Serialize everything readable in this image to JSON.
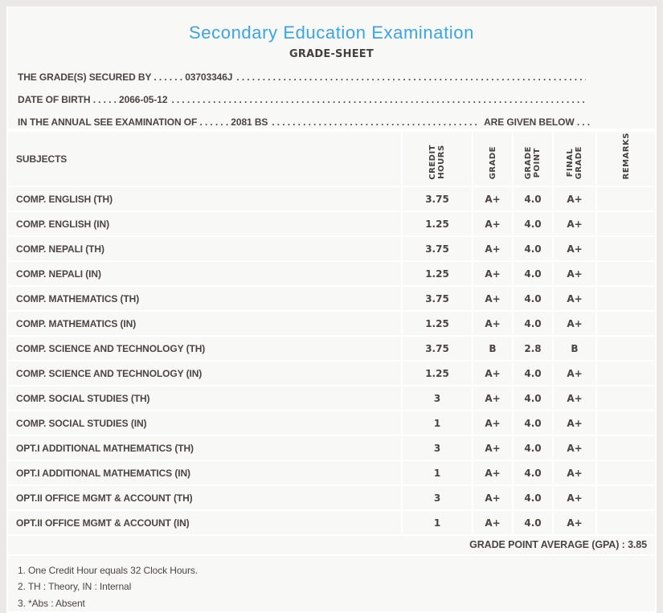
{
  "header": {
    "title": "Secondary Education Examination",
    "subtitle": "GRADE-SHEET"
  },
  "student_info": {
    "lines": [
      {
        "text": "THE GRADE(S) SECURED BY . . . . . . 03703346J",
        "suffix": ""
      },
      {
        "text": "DATE OF BIRTH . . . . . 2066-05-12",
        "suffix": ""
      },
      {
        "text": "IN THE ANNUAL SEE EXAMINATION OF . . . . . . 2081 BS",
        "suffix": "ARE GIVEN BELOW . . ."
      }
    ],
    "dot_filler": ". . . . . . . . . . . . . . . . . . . . . . . . . . . . . . . . . . . . . . . . . . . . . . . . . . . . . . . . . . . . . . . . . . . . . . . . . . . . . . . . . . . . . . . . . . . . . . . . . . . . . . . . . . . . . . . . . . . ."
  },
  "table": {
    "headers": [
      "SUBJECTS",
      "CREDIT\nHOURS",
      "GRADE",
      "GRADE\nPOINT",
      "FINAL\nGRADE",
      "REMARKS"
    ],
    "rows": [
      [
        "COMP. ENGLISH (TH)",
        "3.75",
        "A+",
        "4.0",
        "A+",
        ""
      ],
      [
        "COMP. ENGLISH (IN)",
        "1.25",
        "A+",
        "4.0",
        "A+",
        ""
      ],
      [
        "COMP. NEPALI (TH)",
        "3.75",
        "A+",
        "4.0",
        "A+",
        ""
      ],
      [
        "COMP. NEPALI (IN)",
        "1.25",
        "A+",
        "4.0",
        "A+",
        ""
      ],
      [
        "COMP. MATHEMATICS (TH)",
        "3.75",
        "A+",
        "4.0",
        "A+",
        ""
      ],
      [
        "COMP. MATHEMATICS (IN)",
        "1.25",
        "A+",
        "4.0",
        "A+",
        ""
      ],
      [
        "COMP. SCIENCE AND TECHNOLOGY (TH)",
        "3.75",
        "B",
        "2.8",
        "B",
        ""
      ],
      [
        "COMP. SCIENCE AND TECHNOLOGY (IN)",
        "1.25",
        "A+",
        "4.0",
        "A+",
        ""
      ],
      [
        "COMP. SOCIAL STUDIES (TH)",
        "3",
        "A+",
        "4.0",
        "A+",
        ""
      ],
      [
        "COMP. SOCIAL STUDIES (IN)",
        "1",
        "A+",
        "4.0",
        "A+",
        ""
      ],
      [
        "OPT.I ADDITIONAL MATHEMATICS (TH)",
        "3",
        "A+",
        "4.0",
        "A+",
        ""
      ],
      [
        "OPT.I ADDITIONAL MATHEMATICS (IN)",
        "1",
        "A+",
        "4.0",
        "A+",
        ""
      ],
      [
        "OPT.II OFFICE MGMT & ACCOUNT (TH)",
        "3",
        "A+",
        "4.0",
        "A+",
        ""
      ],
      [
        "OPT.II OFFICE MGMT & ACCOUNT (IN)",
        "1",
        "A+",
        "4.0",
        "A+",
        ""
      ]
    ]
  },
  "summary": {
    "gpa_text": "GRADE POINT AVERAGE (GPA) : 3.85"
  },
  "notes": [
    "1. One Credit Hour equals 32 Clock Hours.",
    "2. TH : Theory, IN : Internal",
    "3. *Abs : Absent"
  ],
  "colors": {
    "title_blue": "#3aa5e6",
    "text_dark": "#4a4540",
    "section_bg": "#f8f8f7",
    "page_bg": "#ebe9e7",
    "separator": "#ffffff"
  }
}
